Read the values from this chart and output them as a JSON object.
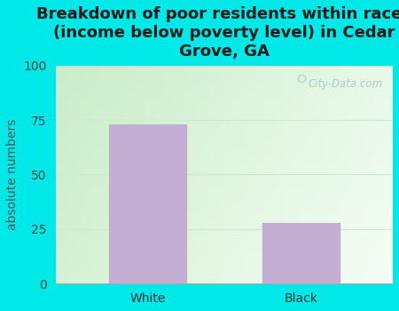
{
  "categories": [
    "White",
    "Black"
  ],
  "values": [
    73,
    28
  ],
  "bar_color": "#c4aed4",
  "bar_edge_color": "#c4aed4",
  "title": "Breakdown of poor residents within races\n(income below poverty level) in Cedar\nGrove, GA",
  "ylabel": "absolute numbers",
  "ylim": [
    0,
    100
  ],
  "yticks": [
    0,
    25,
    50,
    75,
    100
  ],
  "bg_color": "#00e8e8",
  "plot_bg_left": "#c8ecc8",
  "plot_bg_right": "#f5fdf5",
  "title_fontsize": 13,
  "label_fontsize": 10,
  "tick_fontsize": 10,
  "watermark_text": "City-Data.com",
  "watermark_color": "#a8c8cc",
  "title_color": "#1a1a1a",
  "ylabel_color": "#555555",
  "grid_color": "#d0e8d0",
  "bar_width": 0.5
}
